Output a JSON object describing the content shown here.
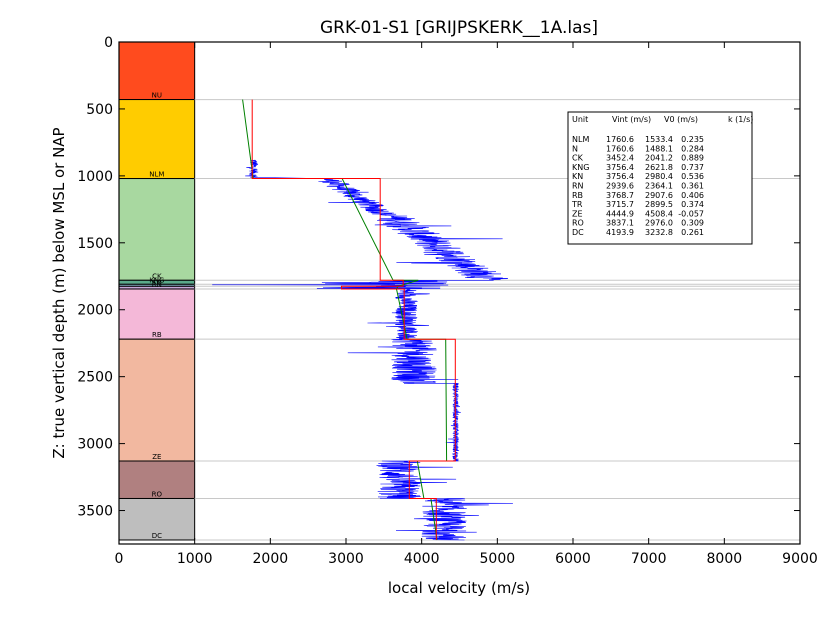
{
  "chart_data": {
    "type": "line",
    "title": "GRK-01-S1 [GRIJPSKERK__1A.las]",
    "xlabel": "local velocity (m/s)",
    "ylabel": "Z: true vertical depth (m) below MSL or NAP",
    "xlim": [
      0,
      9000
    ],
    "ylim": [
      3750,
      0
    ],
    "x_ticks": [
      "0",
      "1000",
      "2000",
      "3000",
      "4000",
      "5000",
      "6000",
      "7000",
      "8000",
      "9000"
    ],
    "y_ticks": [
      "0",
      "500",
      "1000",
      "1500",
      "2000",
      "2500",
      "3000",
      "3500"
    ],
    "grid": "horizontal lines at unit boundaries",
    "units": [
      {
        "name": "NU",
        "top": 0,
        "base": 430,
        "color": "#ff4b1e"
      },
      {
        "name": "NLM",
        "top": 430,
        "base": 1020,
        "color": "#ffcc00"
      },
      {
        "name": "CK",
        "top": 1020,
        "base": 1780,
        "color": "#a8d8a0"
      },
      {
        "name": "KNG",
        "top": 1780,
        "base": 1810,
        "color": "#5aaa8a"
      },
      {
        "name": "KN",
        "top": 1810,
        "base": 1825,
        "color": "#8fbfd0"
      },
      {
        "name": "RN",
        "top": 1825,
        "base": 1845,
        "color": "#c8a8d8"
      },
      {
        "name": "RB",
        "top": 1845,
        "base": 2220,
        "color": "#f4b8d8"
      },
      {
        "name": "ZE",
        "top": 2220,
        "base": 3130,
        "color": "#f2b8a0"
      },
      {
        "name": "RO",
        "top": 3130,
        "base": 3410,
        "color": "#b08080"
      },
      {
        "name": "DC",
        "top": 3410,
        "base": 3720,
        "color": "#bebebe"
      }
    ],
    "table": {
      "headers": [
        "Unit",
        "Vint (m/s)",
        "V0 (m/s)",
        "k (1/s)"
      ],
      "rows": [
        {
          "unit": "NLM",
          "vint": "1760.6",
          "v0": "1533.4",
          "k": "0.235"
        },
        {
          "unit": "N",
          "vint": "1760.6",
          "v0": "1488.1",
          "k": "0.284"
        },
        {
          "unit": "CK",
          "vint": "3452.4",
          "v0": "2041.2",
          "k": "0.889"
        },
        {
          "unit": "KNG",
          "vint": "3756.4",
          "v0": "2621.8",
          "k": "0.737"
        },
        {
          "unit": "KN",
          "vint": "3756.4",
          "v0": "2980.4",
          "k": "0.536"
        },
        {
          "unit": "RN",
          "vint": "2939.6",
          "v0": "2364.1",
          "k": "0.361"
        },
        {
          "unit": "RB",
          "vint": "3768.7",
          "v0": "2907.6",
          "k": "0.406"
        },
        {
          "unit": "TR",
          "vint": "3715.7",
          "v0": "2899.5",
          "k": "0.374"
        },
        {
          "unit": "ZE",
          "vint": "4444.9",
          "v0": "4508.4",
          "k": "-0.057"
        },
        {
          "unit": "RO",
          "vint": "3837.1",
          "v0": "2976.0",
          "k": "0.309"
        },
        {
          "unit": "DC",
          "vint": "4193.9",
          "v0": "3232.8",
          "k": "0.261"
        }
      ]
    },
    "series": [
      {
        "name": "Vint",
        "color": "#ff0000",
        "kind": "interval-velocity step",
        "x": [
          1760,
          1760,
          3452,
          3452,
          3756,
          3756,
          2940,
          2940,
          3769,
          3769,
          4445,
          4445,
          3837,
          3837,
          4194,
          4194
        ],
        "y": [
          430,
          1020,
          1020,
          1780,
          1780,
          1825,
          1825,
          1845,
          1845,
          2220,
          2220,
          3130,
          3130,
          3410,
          3410,
          3720
        ]
      },
      {
        "name": "V0+kZ",
        "color": "#008000",
        "kind": "linear velocity model",
        "x": [
          1634,
          1774,
          2948,
          3622,
          3956,
          3687,
          3667,
          3808,
          4318,
          4330,
          3942,
          4029,
          4122,
          4203
        ],
        "y": [
          430,
          1020,
          1020,
          1780,
          1780,
          1825,
          1845,
          2220,
          2220,
          3130,
          3130,
          3410,
          3410,
          3720
        ]
      },
      {
        "name": "local velocity log",
        "color": "#0000ff",
        "kind": "sonic log",
        "segments": [
          {
            "top": 880,
            "base": 1010,
            "mean": 1780,
            "spread": 60
          },
          {
            "top": 1020,
            "base": 1300,
            "mean": 3000,
            "spread": 180
          },
          {
            "top": 1300,
            "base": 1780,
            "mean": 4100,
            "spread": 280
          },
          {
            "top": 1780,
            "base": 1845,
            "mean": 3500,
            "spread": 900
          },
          {
            "top": 1845,
            "base": 2220,
            "mean": 3800,
            "spread": 150
          },
          {
            "top": 2220,
            "base": 2550,
            "mean": 3900,
            "spread": 300
          },
          {
            "top": 2550,
            "base": 3130,
            "mean": 4450,
            "spread": 40
          },
          {
            "top": 3130,
            "base": 3410,
            "mean": 3700,
            "spread": 300
          },
          {
            "top": 3410,
            "base": 3720,
            "mean": 4300,
            "spread": 300
          }
        ]
      }
    ]
  }
}
